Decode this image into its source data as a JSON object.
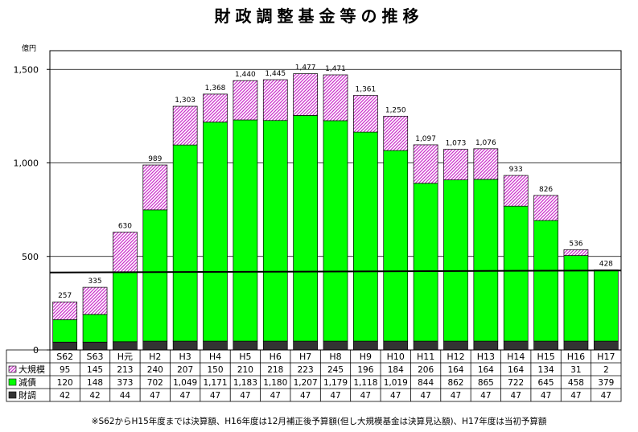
{
  "page": {
    "note": "※S62からH15年度までは決算額、H16年度は12月補正後予算額(但し大規模基金は決算見込額)、H17年度は当初予算額"
  },
  "chart_data": {
    "type": "bar",
    "stacked": true,
    "title": "財政調整基金等の推移",
    "ylabel": "億円",
    "ylim": [
      0,
      1600
    ],
    "yticks": [
      "0",
      "500",
      "1,000",
      "1,500"
    ],
    "ytick_values": [
      0,
      500,
      1000,
      1500
    ],
    "grid": true,
    "categories": [
      "S62",
      "S63",
      "H元",
      "H2",
      "H3",
      "H4",
      "H5",
      "H6",
      "H7",
      "H8",
      "H9",
      "H10",
      "H11",
      "H12",
      "H13",
      "H14",
      "H15",
      "H16",
      "H17"
    ],
    "totals": [
      257,
      335,
      630,
      989,
      1303,
      1368,
      1440,
      1445,
      1477,
      1471,
      1361,
      1250,
      1097,
      1073,
      1076,
      933,
      826,
      536,
      428
    ],
    "total_labels": [
      "257",
      "335",
      "630",
      "989",
      "1,303",
      "1,368",
      "1,440",
      "1,445",
      "1,477",
      "1,471",
      "1,361",
      "1,250",
      "1,097",
      "1,073",
      "1,076",
      "933",
      "826",
      "536",
      "428"
    ],
    "series": [
      {
        "name": "財調",
        "color": "#333333",
        "pattern": "solid",
        "values": [
          42,
          42,
          44,
          47,
          47,
          47,
          47,
          47,
          47,
          47,
          47,
          47,
          47,
          47,
          47,
          47,
          47,
          47,
          47
        ],
        "labels": [
          "42",
          "42",
          "44",
          "47",
          "47",
          "47",
          "47",
          "47",
          "47",
          "47",
          "47",
          "47",
          "47",
          "47",
          "47",
          "47",
          "47",
          "47",
          "47"
        ]
      },
      {
        "name": "減債",
        "color": "#00ff00",
        "pattern": "solid",
        "values": [
          120,
          148,
          373,
          702,
          1049,
          1171,
          1183,
          1180,
          1207,
          1179,
          1118,
          1019,
          844,
          862,
          865,
          722,
          645,
          458,
          379
        ],
        "labels": [
          "120",
          "148",
          "373",
          "702",
          "1,049",
          "1,171",
          "1,183",
          "1,180",
          "1,207",
          "1,179",
          "1,118",
          "1,019",
          "844",
          "862",
          "865",
          "722",
          "645",
          "458",
          "379"
        ]
      },
      {
        "name": "大規模",
        "color": "#cc33cc",
        "pattern": "hatch",
        "values": [
          95,
          145,
          213,
          240,
          207,
          150,
          210,
          218,
          223,
          245,
          196,
          184,
          206,
          164,
          164,
          164,
          134,
          31,
          2
        ],
        "labels": [
          "95",
          "145",
          "213",
          "240",
          "207",
          "150",
          "210",
          "218",
          "223",
          "245",
          "196",
          "184",
          "206",
          "164",
          "164",
          "164",
          "134",
          "31",
          "2"
        ]
      }
    ],
    "table_rows": [
      "大規模",
      "減債",
      "財調"
    ],
    "reference_line": [
      414,
      425
    ],
    "legend": "table-left"
  }
}
